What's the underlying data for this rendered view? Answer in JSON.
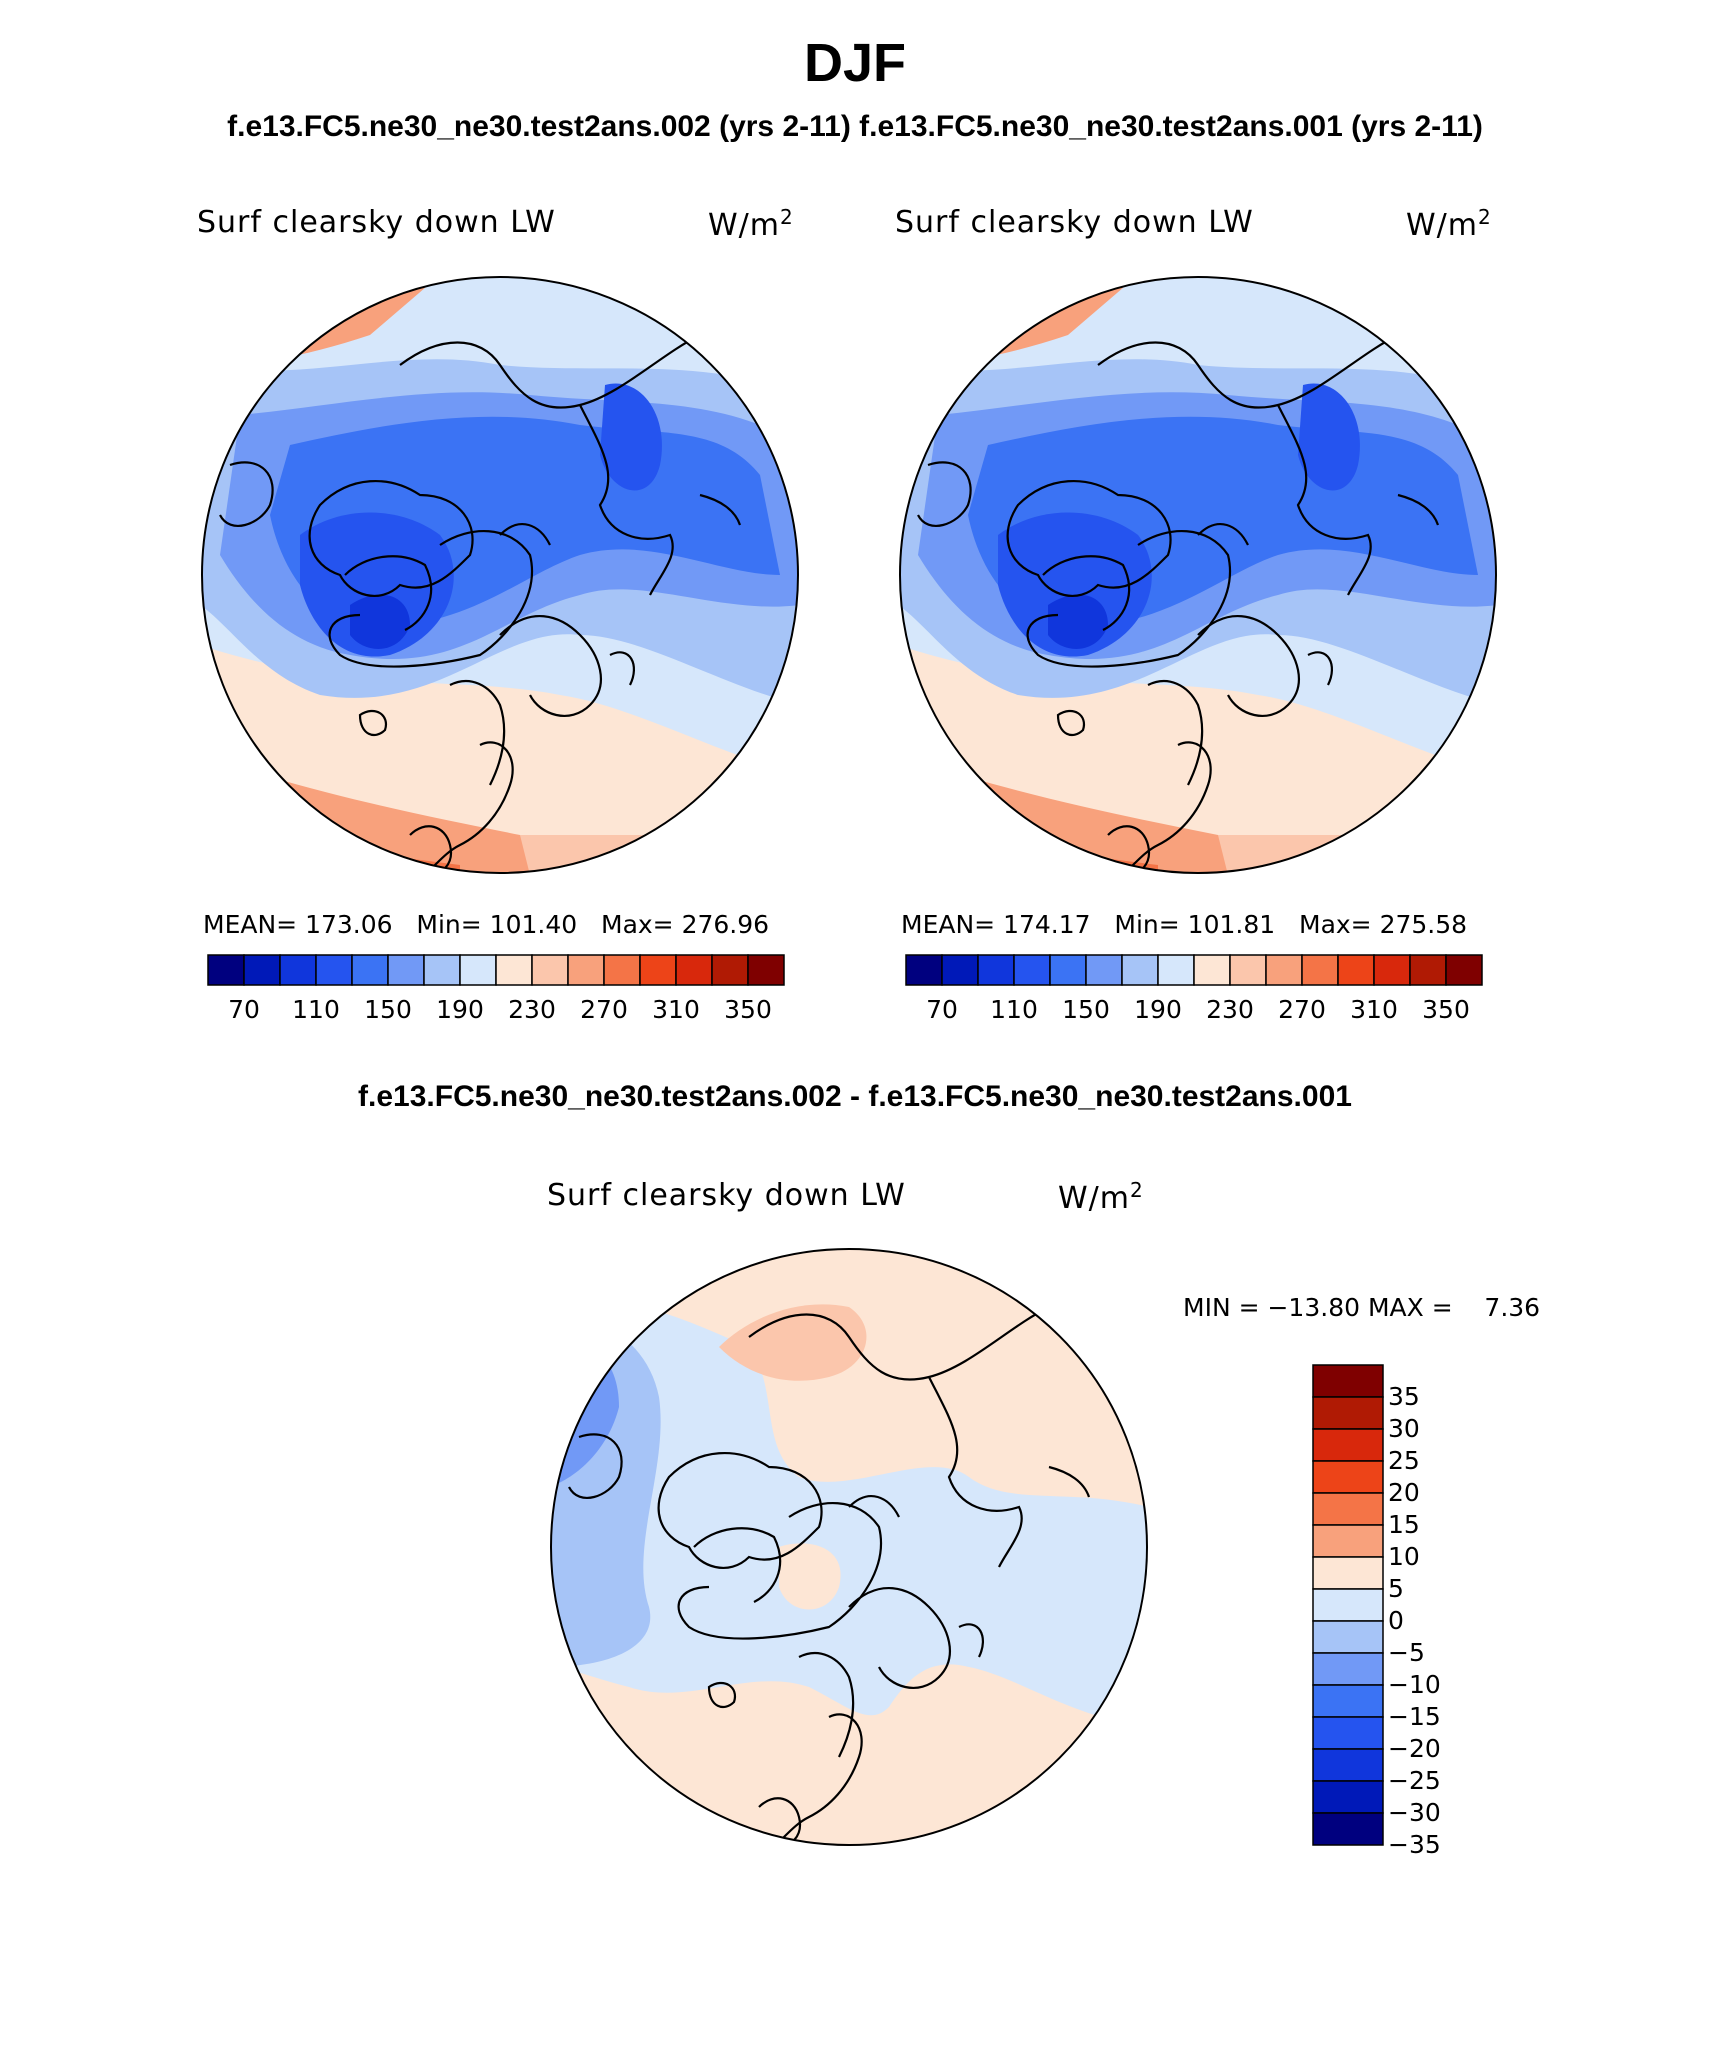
{
  "season": "DJF",
  "case_titles": "f.e13.FC5.ne30_ne30.test2ans.002 (yrs 2-11) f.e13.FC5.ne30_ne30.test2ans.001 (yrs 2-11)",
  "diff_title": "f.e13.FC5.ne30_ne30.test2ans.002 - f.e13.FC5.ne30_ne30.test2ans.001",
  "panels": [
    {
      "variable": "Surf clearsky down LW",
      "units_base": "W/m",
      "units_sup": "2",
      "mean_label": "MEAN=",
      "mean": "173.06",
      "min_label": "Min=",
      "min": "101.40",
      "max_label": "Max=",
      "max": "276.96"
    },
    {
      "variable": "Surf clearsky down LW",
      "units_base": "W/m",
      "units_sup": "2",
      "mean_label": "MEAN=",
      "mean": "174.17",
      "min_label": "Min=",
      "min": "101.81",
      "max_label": "Max=",
      "max": "275.58"
    }
  ],
  "diff_panel": {
    "variable": "Surf clearsky down LW",
    "units_base": "W/m",
    "units_sup": "2",
    "minmax_text": "MIN = −13.80 MAX =    7.36"
  },
  "colorbar_abs": {
    "colors": [
      "#00007f",
      "#0019b8",
      "#1036dc",
      "#2554ef",
      "#3b73f4",
      "#7199f6",
      "#a6c4f7",
      "#d6e7fb",
      "#fde6d5",
      "#fbc6ac",
      "#f8a17c",
      "#f47447",
      "#ed4418",
      "#d8280c",
      "#b01a04",
      "#7f0000"
    ],
    "tick_labels": [
      "70",
      "110",
      "150",
      "190",
      "230",
      "270",
      "310",
      "350"
    ]
  },
  "colorbar_diff": {
    "colors": [
      "#7f0000",
      "#b01a04",
      "#d8280c",
      "#ed4418",
      "#f47447",
      "#f8a17c",
      "#fde6d5",
      "#d6e7fb",
      "#a6c4f7",
      "#7199f6",
      "#3b73f4",
      "#2554ef",
      "#1036dc",
      "#0019b8",
      "#00007f"
    ],
    "tick_labels": [
      "35",
      "30",
      "25",
      "20",
      "15",
      "10",
      "5",
      "0",
      "−5",
      "−10",
      "−15",
      "−20",
      "−25",
      "−30",
      "−35"
    ]
  }
}
